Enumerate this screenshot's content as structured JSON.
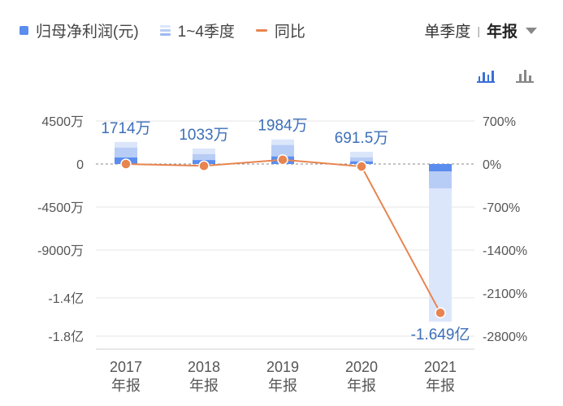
{
  "legend": {
    "items": [
      {
        "label": "归母净利润(元)",
        "color": "#5b8def"
      },
      {
        "label": "1~4季度",
        "color": "#c9d8f7"
      },
      {
        "label": "同比",
        "color": "#e8844f"
      }
    ]
  },
  "period": {
    "option_quarter": "单季度",
    "separator": "|",
    "option_annual": "年报"
  },
  "view_toggle": {
    "icons": [
      "bar-chart-icon",
      "quarter-bar-icon"
    ]
  },
  "chart_data": {
    "type": "bar",
    "categories": [
      "2017",
      "2018",
      "2019",
      "2020",
      "2021"
    ],
    "category_sublabel": "年报",
    "series": [
      {
        "name": "归母净利润(元)",
        "values": [
          17140000,
          10330000,
          19840000,
          6915000,
          -164900000
        ],
        "labels": [
          "1714万",
          "1033万",
          "1984万",
          "691.5万",
          "-1.649亿"
        ]
      },
      {
        "name": "同比",
        "type": "line",
        "values_percent": [
          0,
          -30,
          70,
          -40,
          -2420
        ]
      }
    ],
    "y_left": {
      "ticks": [
        45000000,
        0,
        -45000000,
        -90000000,
        -140000000,
        -180000000
      ],
      "tick_labels": [
        "4500万",
        "0",
        "-4500万",
        "-9000万",
        "-1.4亿",
        "-1.8亿"
      ]
    },
    "y_right": {
      "ticks": [
        700,
        0,
        -700,
        -1400,
        -2100,
        -2800
      ],
      "tick_labels": [
        "700%",
        "0%",
        "-700%",
        "-1400%",
        "-2100%",
        "-2800%"
      ]
    },
    "colors": {
      "bar_light": "#dce6fb",
      "bar_mid": "#b8cdf5",
      "bar_dark": "#5b8def",
      "line": "#e8844f",
      "grid": "#e5e5e5",
      "label": "#3d6fb8"
    }
  }
}
